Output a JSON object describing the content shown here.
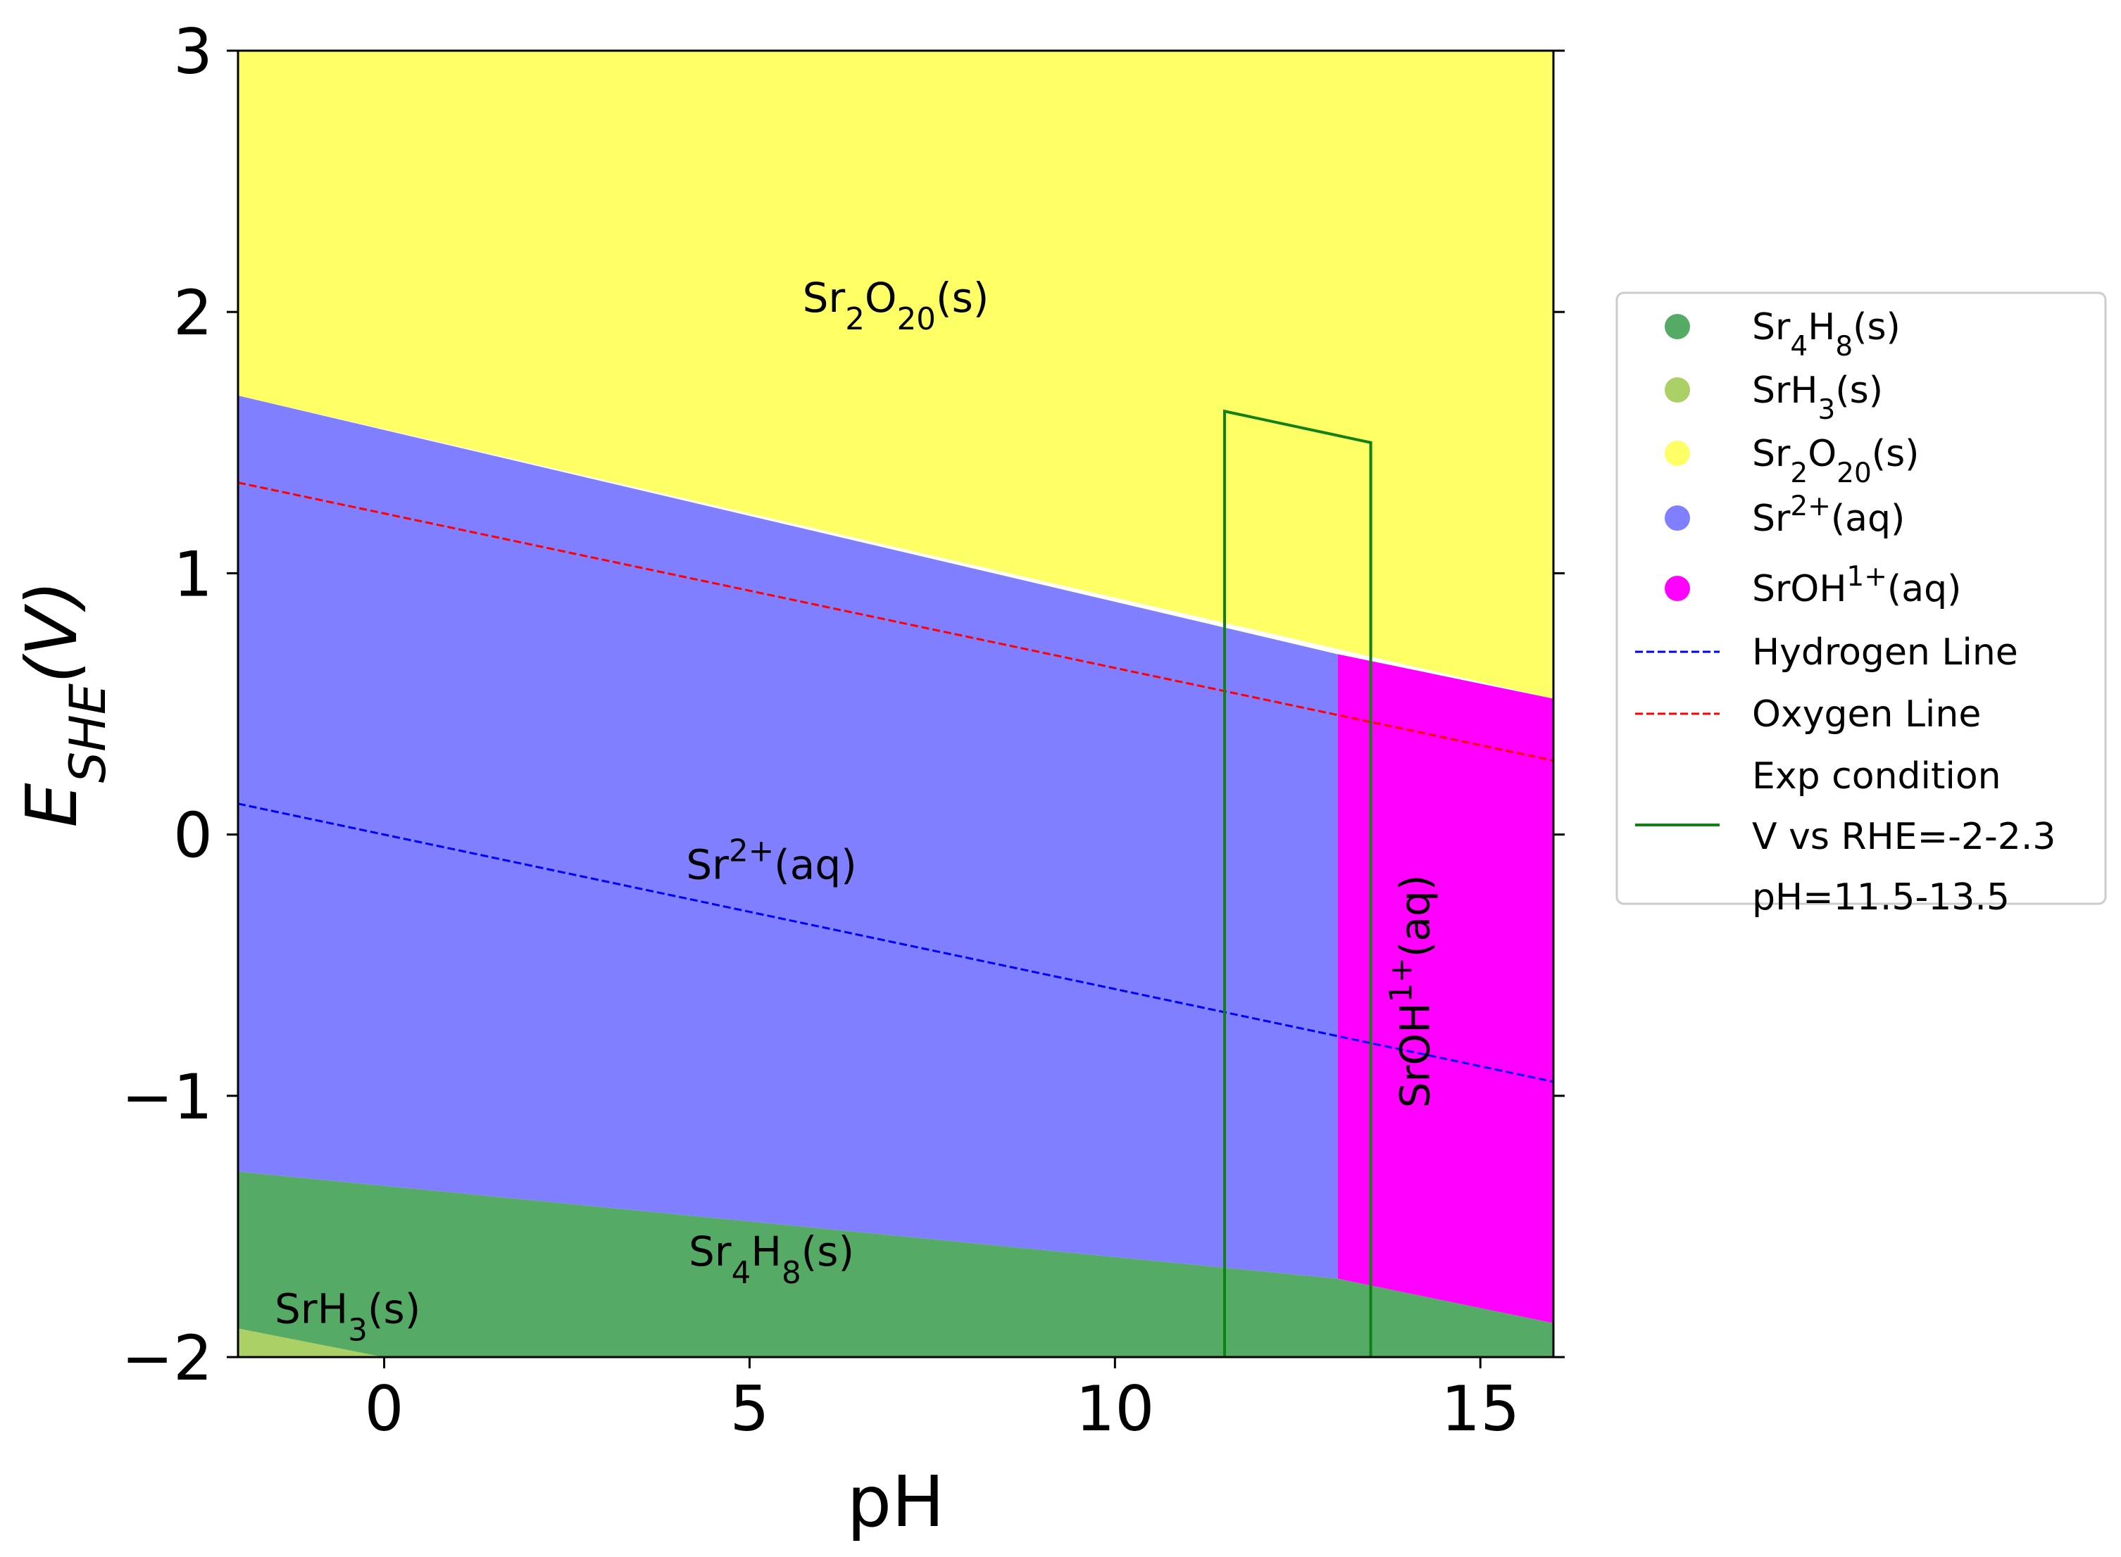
{
  "chart_data": {
    "type": "area",
    "xlabel": "pH",
    "ylabel_main": "E",
    "ylabel_sub": "SHE",
    "ylabel_unit": "(V)",
    "xlim": [
      -2,
      16
    ],
    "ylim": [
      -2,
      3
    ],
    "xticks": [
      0,
      5,
      10,
      15
    ],
    "xtick_labels": [
      "0",
      "5",
      "10",
      "15"
    ],
    "yticks": [
      -2,
      -1,
      0,
      1,
      2,
      3
    ],
    "ytick_labels": [
      "−2",
      "−1",
      "0",
      "1",
      "2",
      "3"
    ],
    "grid": false,
    "legend_position": "right, outside plot",
    "regions": [
      {
        "id": "yellow",
        "formula": [
          [
            "Sr"
          ],
          [
            "2",
            "sub"
          ],
          [
            "O"
          ],
          [
            "20",
            "sub"
          ],
          [
            "(s)"
          ]
        ],
        "color": "#ffff66",
        "label_at": [
          7.0,
          2.0
        ],
        "polygon": [
          [
            -2,
            3
          ],
          [
            16,
            3
          ],
          [
            16,
            0.52
          ],
          [
            -2,
            1.68
          ]
        ]
      },
      {
        "id": "blue",
        "formula": [
          [
            "Sr"
          ],
          [
            "2+",
            "sup"
          ],
          [
            "(aq)"
          ]
        ],
        "color": "#7f7fff",
        "label_at": [
          5.3,
          -0.17
        ],
        "polygon": [
          [
            -2,
            1.68
          ],
          [
            13.05,
            0.69
          ],
          [
            13.05,
            -1.7
          ],
          [
            -2,
            -1.29
          ]
        ]
      },
      {
        "id": "magenta",
        "formula": [
          [
            "SrOH"
          ],
          [
            "1+",
            "sup"
          ],
          [
            "(aq)"
          ]
        ],
        "color": "#ff00ff",
        "label_at": [
          14.3,
          -0.6
        ],
        "rotate": -90,
        "polygon": [
          [
            13.05,
            0.69
          ],
          [
            16,
            0.52
          ],
          [
            16,
            -1.87
          ],
          [
            13.05,
            -1.7
          ]
        ]
      },
      {
        "id": "green",
        "formula": [
          [
            "Sr"
          ],
          [
            "4",
            "sub"
          ],
          [
            "H"
          ],
          [
            "8",
            "sub"
          ],
          [
            "(s)"
          ]
        ],
        "color": "#55aa66",
        "label_at": [
          5.3,
          -1.65
        ],
        "polygon": [
          [
            -2,
            -1.29
          ],
          [
            13.05,
            -1.7
          ],
          [
            16,
            -1.87
          ],
          [
            16,
            -2
          ],
          [
            -2,
            -2
          ]
        ]
      },
      {
        "id": "lightgreen",
        "formula": [
          [
            "SrH"
          ],
          [
            "3",
            "sub"
          ],
          [
            "(s)"
          ]
        ],
        "color": "#aad066",
        "label_at": [
          -0.5,
          -1.87
        ],
        "polygon": [
          [
            -2,
            -1.89
          ],
          [
            0,
            -2
          ],
          [
            -2,
            -2
          ]
        ]
      }
    ],
    "lines": [
      {
        "id": "hydrogen",
        "name": "Hydrogen Line",
        "color": "#0000ff",
        "dash": true,
        "x": [
          -2,
          16
        ],
        "y": [
          0.118,
          -0.946
        ]
      },
      {
        "id": "oxygen",
        "name": "Oxygen Line",
        "color": "#ff0000",
        "dash": true,
        "x": [
          -2,
          16
        ],
        "y": [
          1.347,
          0.283
        ]
      },
      {
        "id": "exp",
        "name": "Exp condition",
        "color": "#138013",
        "dash": false,
        "x": [
          11.5,
          11.5,
          13.5,
          13.5
        ],
        "y": [
          -2,
          1.62,
          1.5,
          -2
        ]
      }
    ],
    "legend": [
      {
        "kind": "marker",
        "color": "#55aa66",
        "formula": [
          [
            "Sr"
          ],
          [
            "4",
            "sub"
          ],
          [
            "H"
          ],
          [
            "8",
            "sub"
          ],
          [
            "(s)"
          ]
        ]
      },
      {
        "kind": "marker",
        "color": "#aad066",
        "formula": [
          [
            "SrH"
          ],
          [
            "3",
            "sub"
          ],
          [
            "(s)"
          ]
        ]
      },
      {
        "kind": "marker",
        "color": "#ffff66",
        "formula": [
          [
            "Sr"
          ],
          [
            "2",
            "sub"
          ],
          [
            "O"
          ],
          [
            "20",
            "sub"
          ],
          [
            "(s)"
          ]
        ]
      },
      {
        "kind": "marker",
        "color": "#7f7fff",
        "formula": [
          [
            "Sr"
          ],
          [
            "2+",
            "sup"
          ],
          [
            "(aq)"
          ]
        ]
      },
      {
        "kind": "marker",
        "color": "#ff00ff",
        "formula": [
          [
            "SrOH"
          ],
          [
            "1+",
            "sup"
          ],
          [
            "(aq)"
          ]
        ]
      },
      {
        "kind": "dash",
        "color": "#0000ff",
        "text": "Hydrogen Line"
      },
      {
        "kind": "dash",
        "color": "#ff0000",
        "text": "Oxygen Line"
      },
      {
        "kind": "solid",
        "color": "#138013",
        "lines": [
          "Exp condition",
          "V vs RHE=-2-2.3",
          "pH=11.5-13.5"
        ]
      }
    ]
  }
}
